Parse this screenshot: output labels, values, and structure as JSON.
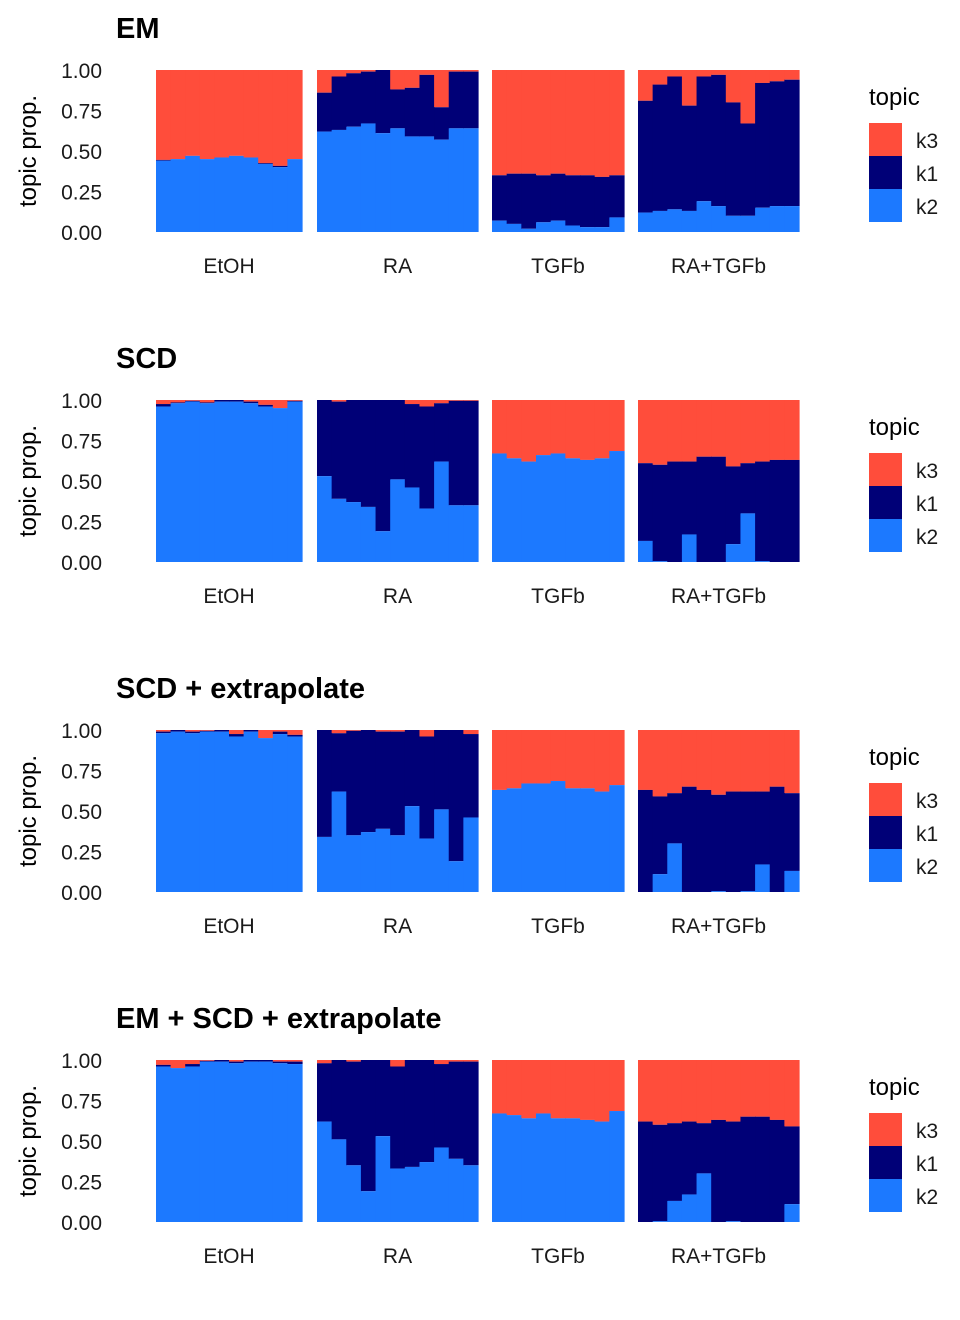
{
  "chart_data": [
    {
      "type": "bar",
      "stacked": true,
      "title": "EM",
      "xlabel": "",
      "ylabel": "topic prop.",
      "ylim": [
        0,
        1
      ],
      "yticks": [
        "0.00",
        "0.25",
        "0.50",
        "0.75",
        "1.00"
      ],
      "legend": {
        "title": "topic",
        "placement": "right",
        "entries": [
          {
            "name": "k3",
            "color": "#FF4D3B"
          },
          {
            "name": "k1",
            "color": "#000077"
          },
          {
            "name": "k2",
            "color": "#1C79FF"
          }
        ]
      },
      "facets": [
        {
          "label": "EtOH",
          "k2": [
            0.44,
            0.45,
            0.47,
            0.45,
            0.46,
            0.47,
            0.46,
            0.42,
            0.4,
            0.45
          ],
          "k2_plus_k1": [
            0.445,
            0.45,
            0.47,
            0.45,
            0.46,
            0.47,
            0.46,
            0.425,
            0.408,
            0.45
          ]
        },
        {
          "label": "RA",
          "k2": [
            0.62,
            0.63,
            0.65,
            0.67,
            0.61,
            0.64,
            0.59,
            0.59,
            0.57,
            0.64,
            0.64
          ],
          "k2_plus_k1": [
            0.86,
            0.96,
            0.98,
            0.99,
            1.0,
            0.88,
            0.89,
            0.97,
            0.77,
            0.99,
            0.99
          ]
        },
        {
          "label": "TGFb",
          "k2": [
            0.07,
            0.05,
            0.02,
            0.06,
            0.07,
            0.04,
            0.03,
            0.03,
            0.09
          ],
          "k2_plus_k1": [
            0.35,
            0.36,
            0.36,
            0.35,
            0.36,
            0.35,
            0.35,
            0.34,
            0.35
          ]
        },
        {
          "label": "RA+TGFb",
          "k2": [
            0.12,
            0.13,
            0.14,
            0.13,
            0.19,
            0.16,
            0.1,
            0.1,
            0.15,
            0.16,
            0.16
          ],
          "k2_plus_k1": [
            0.81,
            0.91,
            0.96,
            0.78,
            0.96,
            0.97,
            0.8,
            0.67,
            0.92,
            0.93,
            0.94
          ]
        }
      ]
    },
    {
      "type": "bar",
      "stacked": true,
      "title": "SCD",
      "xlabel": "",
      "ylabel": "topic prop.",
      "ylim": [
        0,
        1
      ],
      "yticks": [
        "0.00",
        "0.25",
        "0.50",
        "0.75",
        "1.00"
      ],
      "legend": {
        "title": "topic",
        "placement": "right",
        "entries": [
          {
            "name": "k3",
            "color": "#FF4D3B"
          },
          {
            "name": "k1",
            "color": "#000077"
          },
          {
            "name": "k2",
            "color": "#1C79FF"
          }
        ]
      },
      "facets": [
        {
          "label": "EtOH",
          "k2": [
            0.96,
            0.98,
            0.99,
            0.98,
            0.99,
            0.99,
            0.98,
            0.96,
            0.95,
            0.99
          ],
          "k2_plus_k1": [
            0.975,
            0.985,
            0.995,
            0.985,
            1.0,
            1.0,
            0.99,
            0.97,
            0.95,
            0.995
          ]
        },
        {
          "label": "RA",
          "k2": [
            0.53,
            0.39,
            0.37,
            0.34,
            0.19,
            0.51,
            0.46,
            0.33,
            0.62,
            0.35,
            0.35
          ],
          "k2_plus_k1": [
            1.0,
            0.99,
            1.0,
            1.0,
            1.0,
            1.0,
            0.975,
            0.96,
            0.98,
            0.995,
            0.995
          ]
        },
        {
          "label": "TGFb",
          "k2": [
            0.67,
            0.64,
            0.62,
            0.66,
            0.67,
            0.64,
            0.63,
            0.64,
            0.685
          ],
          "k2_plus_k1": [
            0.67,
            0.64,
            0.62,
            0.66,
            0.67,
            0.64,
            0.63,
            0.64,
            0.685
          ]
        },
        {
          "label": "RA+TGFb",
          "k2": [
            0.13,
            0.005,
            0,
            0.17,
            0,
            0,
            0.11,
            0.3,
            0.005,
            0,
            0
          ],
          "k2_plus_k1": [
            0.61,
            0.6,
            0.62,
            0.62,
            0.65,
            0.65,
            0.59,
            0.61,
            0.62,
            0.63,
            0.63
          ]
        }
      ]
    },
    {
      "type": "bar",
      "stacked": true,
      "title": "SCD + extrapolate",
      "xlabel": "",
      "ylabel": "topic prop.",
      "ylim": [
        0,
        1
      ],
      "yticks": [
        "0.00",
        "0.25",
        "0.50",
        "0.75",
        "1.00"
      ],
      "legend": {
        "title": "topic",
        "placement": "right",
        "entries": [
          {
            "name": "k3",
            "color": "#FF4D3B"
          },
          {
            "name": "k1",
            "color": "#000077"
          },
          {
            "name": "k2",
            "color": "#1C79FF"
          }
        ]
      },
      "facets": [
        {
          "label": "EtOH",
          "k2": [
            0.98,
            0.99,
            0.98,
            0.99,
            0.99,
            0.96,
            0.99,
            0.95,
            0.975,
            0.96
          ],
          "k2_plus_k1": [
            0.99,
            1.0,
            0.99,
            0.995,
            1.0,
            0.975,
            1.0,
            0.95,
            0.99,
            0.97
          ]
        },
        {
          "label": "RA",
          "k2": [
            0.34,
            0.62,
            0.35,
            0.37,
            0.39,
            0.35,
            0.53,
            0.33,
            0.51,
            0.19,
            0.46
          ],
          "k2_plus_k1": [
            1.0,
            0.98,
            0.995,
            1.0,
            0.99,
            0.99,
            1.0,
            0.96,
            1.0,
            1.0,
            0.975
          ]
        },
        {
          "label": "TGFb",
          "k2": [
            0.63,
            0.64,
            0.67,
            0.67,
            0.685,
            0.64,
            0.64,
            0.62,
            0.66
          ],
          "k2_plus_k1": [
            0.63,
            0.64,
            0.67,
            0.67,
            0.685,
            0.64,
            0.64,
            0.62,
            0.66
          ]
        },
        {
          "label": "RA+TGFb",
          "k2": [
            0,
            0.11,
            0.3,
            0,
            0,
            0.005,
            0,
            0.005,
            0.17,
            0,
            0.13
          ],
          "k2_plus_k1": [
            0.63,
            0.59,
            0.61,
            0.65,
            0.63,
            0.6,
            0.62,
            0.62,
            0.62,
            0.65,
            0.61
          ]
        }
      ]
    },
    {
      "type": "bar",
      "stacked": true,
      "title": "EM + SCD + extrapolate",
      "xlabel": "",
      "ylabel": "topic prop.",
      "ylim": [
        0,
        1
      ],
      "yticks": [
        "0.00",
        "0.25",
        "0.50",
        "0.75",
        "1.00"
      ],
      "legend": {
        "title": "topic",
        "placement": "right",
        "entries": [
          {
            "name": "k3",
            "color": "#FF4D3B"
          },
          {
            "name": "k1",
            "color": "#000077"
          },
          {
            "name": "k2",
            "color": "#1C79FF"
          }
        ]
      },
      "facets": [
        {
          "label": "EtOH",
          "k2": [
            0.96,
            0.95,
            0.96,
            0.99,
            0.99,
            0.98,
            0.99,
            0.99,
            0.98,
            0.975
          ],
          "k2_plus_k1": [
            0.97,
            0.95,
            0.975,
            0.995,
            1.0,
            0.99,
            1.0,
            1.0,
            0.99,
            0.99
          ]
        },
        {
          "label": "RA",
          "k2": [
            0.62,
            0.51,
            0.35,
            0.19,
            0.53,
            0.33,
            0.34,
            0.37,
            0.46,
            0.39,
            0.35
          ],
          "k2_plus_k1": [
            0.98,
            1.0,
            0.99,
            1.0,
            1.0,
            0.96,
            1.0,
            1.0,
            0.975,
            0.99,
            0.99
          ]
        },
        {
          "label": "TGFb",
          "k2": [
            0.67,
            0.66,
            0.64,
            0.67,
            0.64,
            0.64,
            0.63,
            0.62,
            0.685
          ],
          "k2_plus_k1": [
            0.67,
            0.66,
            0.64,
            0.67,
            0.64,
            0.64,
            0.63,
            0.62,
            0.685
          ]
        },
        {
          "label": "RA+TGFb",
          "k2": [
            0,
            0.005,
            0.13,
            0.17,
            0.3,
            0,
            0.005,
            0,
            0,
            0,
            0.11
          ],
          "k2_plus_k1": [
            0.62,
            0.6,
            0.61,
            0.62,
            0.61,
            0.63,
            0.62,
            0.65,
            0.65,
            0.63,
            0.59
          ]
        }
      ]
    }
  ]
}
